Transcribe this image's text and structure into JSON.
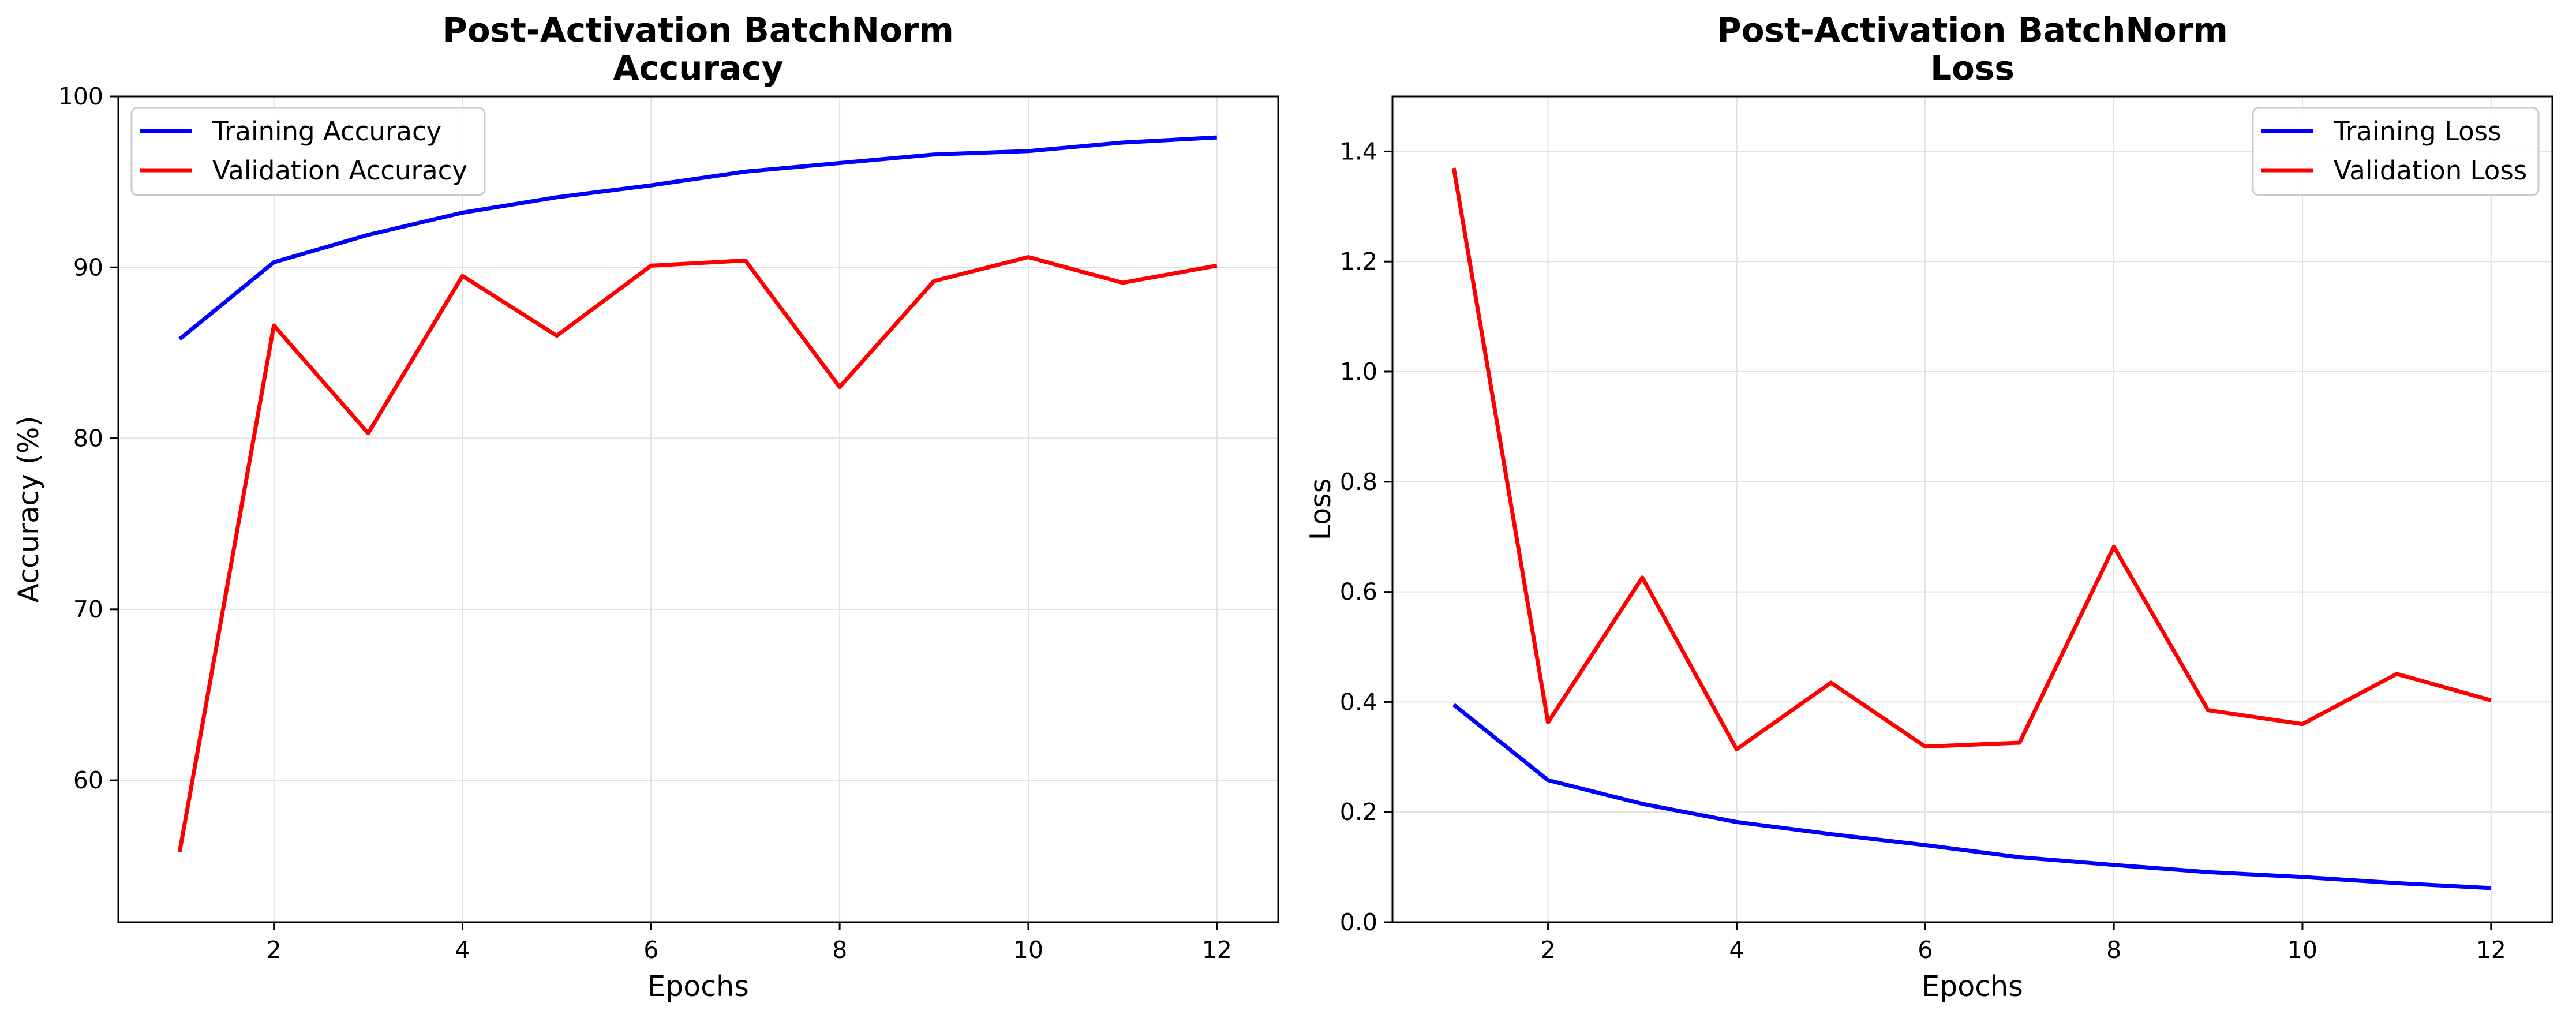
{
  "chart_data": [
    {
      "type": "line",
      "title_line1": "Post-Activation BatchNorm",
      "title_line2": "Accuracy",
      "xlabel": "Epochs",
      "ylabel": "Accuracy (%)",
      "xlim": [
        0.35,
        12.65
      ],
      "ylim": [
        51.7,
        100
      ],
      "xticks": [
        2,
        4,
        6,
        8,
        10,
        12
      ],
      "yticks": [
        60,
        70,
        80,
        90,
        100
      ],
      "grid": true,
      "legend_position": "upper-left",
      "x": [
        1,
        2,
        3,
        4,
        5,
        6,
        7,
        8,
        9,
        10,
        11,
        12
      ],
      "series": [
        {
          "name": "Training Accuracy",
          "color": "#0000ff",
          "values": [
            85.8,
            90.3,
            91.9,
            93.2,
            94.1,
            94.8,
            95.6,
            96.1,
            96.6,
            96.8,
            97.3,
            97.6
          ]
        },
        {
          "name": "Validation Accuracy",
          "color": "#ff0000",
          "values": [
            55.8,
            86.6,
            80.3,
            89.5,
            86.0,
            90.1,
            90.4,
            83.0,
            89.2,
            90.6,
            89.1,
            90.1
          ]
        }
      ]
    },
    {
      "type": "line",
      "title_line1": "Post-Activation BatchNorm",
      "title_line2": "Loss",
      "xlabel": "Epochs",
      "ylabel": "Loss",
      "xlim": [
        0.35,
        12.65
      ],
      "ylim": [
        0,
        1.5
      ],
      "xticks": [
        2,
        4,
        6,
        8,
        10,
        12
      ],
      "yticks": [
        0.0,
        0.2,
        0.4,
        0.6,
        0.8,
        1.0,
        1.2,
        1.4
      ],
      "grid": true,
      "legend_position": "upper-right",
      "x": [
        1,
        2,
        3,
        4,
        5,
        6,
        7,
        8,
        9,
        10,
        11,
        12
      ],
      "series": [
        {
          "name": "Training Loss",
          "color": "#0000ff",
          "values": [
            0.395,
            0.258,
            0.215,
            0.182,
            0.16,
            0.14,
            0.118,
            0.104,
            0.091,
            0.082,
            0.071,
            0.062
          ]
        },
        {
          "name": "Validation Loss",
          "color": "#ff0000",
          "values": [
            1.37,
            0.363,
            0.626,
            0.314,
            0.435,
            0.319,
            0.326,
            0.682,
            0.385,
            0.36,
            0.451,
            0.403
          ]
        }
      ]
    }
  ]
}
